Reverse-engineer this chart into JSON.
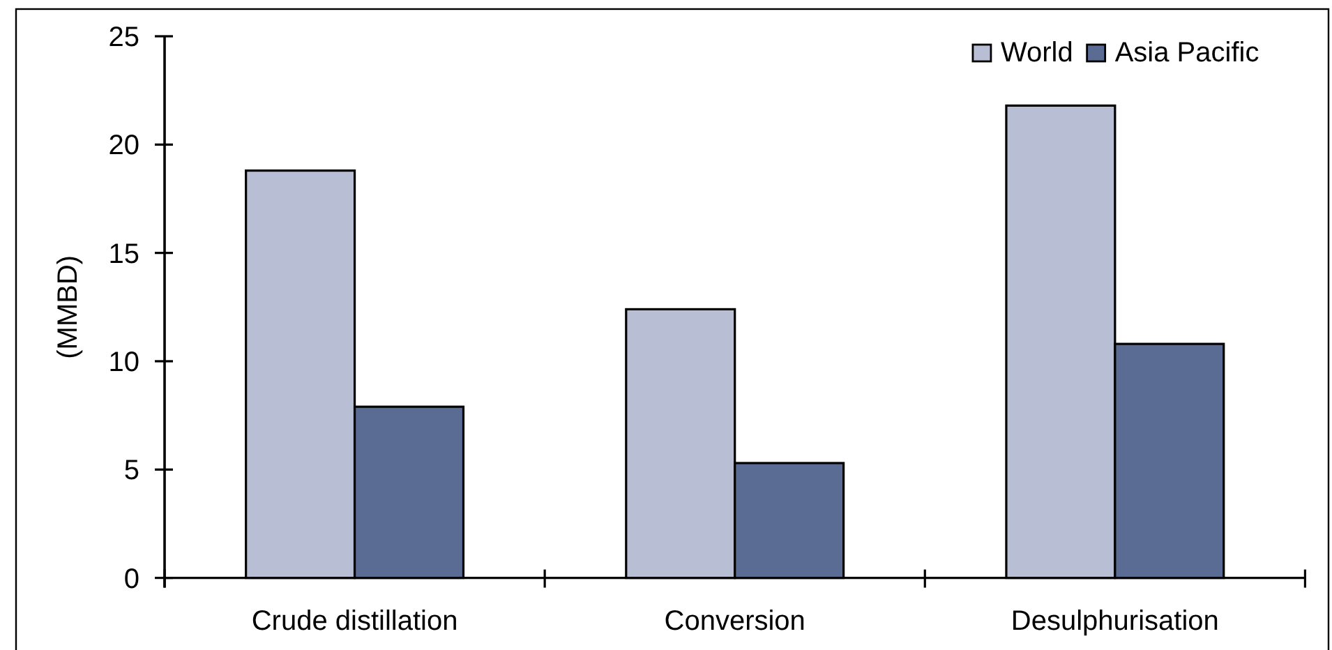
{
  "chart_data": {
    "type": "bar",
    "categories": [
      "Crude distillation",
      "Conversion",
      "Desulphurisation"
    ],
    "ylabel": "(MMBD)",
    "ylim": [
      0,
      25
    ],
    "yticks": [
      0,
      5,
      10,
      15,
      20,
      25
    ],
    "legend": "top right",
    "series": [
      {
        "name": "World",
        "color": "#b8bed3",
        "values": [
          18.8,
          12.4,
          21.8
        ]
      },
      {
        "name": "Asia Pacific",
        "color": "#5a6b94",
        "values": [
          7.9,
          5.3,
          10.8
        ]
      }
    ]
  }
}
